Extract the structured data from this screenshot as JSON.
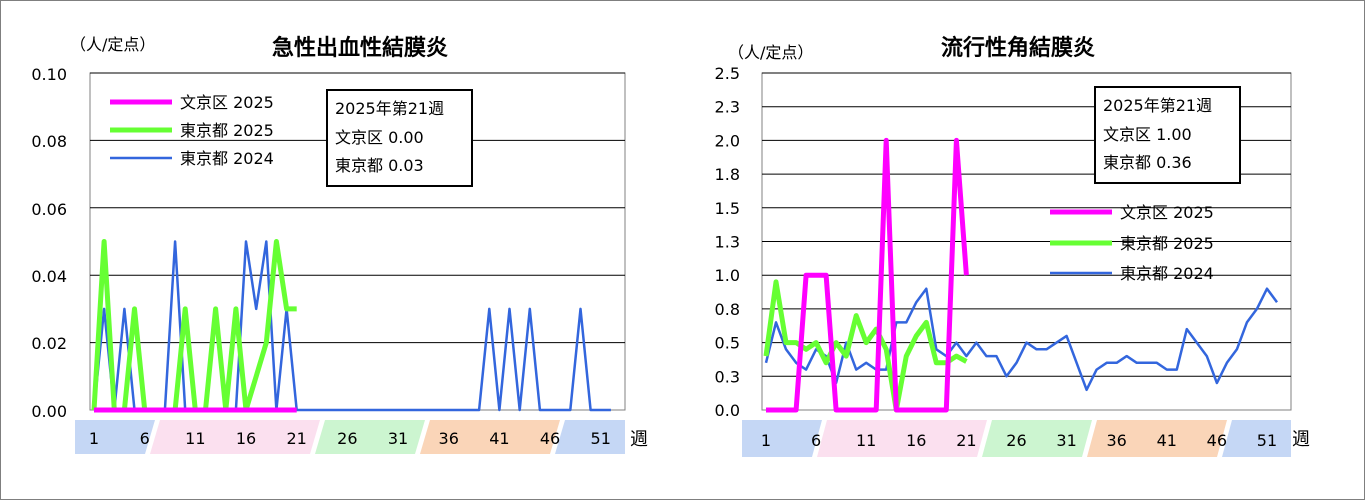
{
  "charts": [
    {
      "id": "left",
      "title": "急性出血性結膜炎",
      "unit_label": "（人/定点）",
      "x_axis_word": "週",
      "y_ticks": [
        "0.10",
        "0.08",
        "0.06",
        "0.04",
        "0.02",
        "0.00"
      ],
      "x_tick_labels": [
        "1",
        "6",
        "11",
        "16",
        "21",
        "26",
        "31",
        "36",
        "41",
        "46",
        "51"
      ],
      "legend": [
        {
          "label": "文京区 2025",
          "color": "#ff00ff"
        },
        {
          "label": "東京都 2025",
          "color": "#66ff33"
        },
        {
          "label": "東京都 2024",
          "color": "#3366dd"
        }
      ],
      "info_box": [
        "2025年第21週",
        "文京区  0.00",
        "東京都  0.03"
      ]
    },
    {
      "id": "right",
      "title": "流行性角結膜炎",
      "unit_label": "（人/定点）",
      "x_axis_word": "週",
      "y_ticks": [
        "2.5",
        "2.3",
        "2.0",
        "1.8",
        "1.5",
        "1.3",
        "1.0",
        "0.8",
        "0.5",
        "0.3",
        "0.0"
      ],
      "x_tick_labels": [
        "1",
        "6",
        "11",
        "16",
        "21",
        "26",
        "31",
        "36",
        "41",
        "46",
        "51"
      ],
      "legend": [
        {
          "label": "文京区 2025",
          "color": "#ff00ff"
        },
        {
          "label": "東京都 2025",
          "color": "#66ff33"
        },
        {
          "label": "東京都 2024",
          "color": "#3366dd"
        }
      ],
      "info_box": [
        "2025年第21週",
        "文京区  1.00",
        "東京都  0.36"
      ]
    }
  ],
  "chart_data": [
    {
      "type": "line",
      "title": "急性出血性結膜炎",
      "ylabel": "（人/定点）",
      "xlabel": "週",
      "ylim": [
        0,
        0.1
      ],
      "xlim": [
        1,
        53
      ],
      "grid": true,
      "legend_position": "top-left",
      "series": [
        {
          "name": "文京区 2025",
          "color": "#ff00ff",
          "values": [
            0,
            0,
            0,
            0,
            0,
            0,
            0,
            0,
            0,
            0,
            0,
            0,
            0,
            0,
            0,
            0,
            0,
            0,
            0,
            0,
            0
          ]
        },
        {
          "name": "東京都 2025",
          "color": "#66ff33",
          "values": [
            0,
            0.05,
            0,
            0,
            0.03,
            0,
            0,
            0,
            0,
            0.03,
            0,
            0,
            0.03,
            0,
            0.03,
            0,
            0.01,
            0.02,
            0.05,
            0.03,
            0.03
          ]
        },
        {
          "name": "東京都 2024",
          "color": "#3366dd",
          "values": [
            0,
            0.03,
            0,
            0.03,
            0,
            0,
            0,
            0,
            0.05,
            0,
            0,
            0,
            0,
            0,
            0,
            0.05,
            0.03,
            0.05,
            0,
            0.03,
            0,
            0,
            0,
            0,
            0,
            0,
            0,
            0,
            0,
            0,
            0,
            0,
            0,
            0,
            0,
            0,
            0,
            0,
            0,
            0.03,
            0,
            0.03,
            0,
            0.03,
            0,
            0,
            0,
            0,
            0.03,
            0,
            0,
            0
          ]
        }
      ]
    },
    {
      "type": "line",
      "title": "流行性角結膜炎",
      "ylabel": "（人/定点）",
      "xlabel": "週",
      "ylim": [
        0,
        2.5
      ],
      "xlim": [
        1,
        53
      ],
      "grid": true,
      "legend_position": "center-right",
      "series": [
        {
          "name": "文京区 2025",
          "color": "#ff00ff",
          "values": [
            0,
            0,
            0,
            0,
            1,
            1,
            1,
            0,
            0,
            0,
            0,
            0,
            2,
            0,
            0,
            0,
            0,
            0,
            0,
            2,
            1
          ]
        },
        {
          "name": "東京都 2025",
          "color": "#66ff33",
          "values": [
            0.4,
            0.95,
            0.5,
            0.5,
            0.45,
            0.5,
            0.35,
            0.5,
            0.4,
            0.7,
            0.5,
            0.6,
            0.45,
            0,
            0.4,
            0.55,
            0.65,
            0.35,
            0.35,
            0.4,
            0.36
          ]
        },
        {
          "name": "東京都 2024",
          "color": "#3366dd",
          "values": [
            0.35,
            0.65,
            0.45,
            0.35,
            0.3,
            0.45,
            0.4,
            0.2,
            0.5,
            0.3,
            0.35,
            0.3,
            0.3,
            0.65,
            0.65,
            0.8,
            0.9,
            0.45,
            0.4,
            0.5,
            0.4,
            0.5,
            0.4,
            0.4,
            0.25,
            0.35,
            0.5,
            0.45,
            0.45,
            0.5,
            0.55,
            0.35,
            0.15,
            0.3,
            0.35,
            0.35,
            0.4,
            0.35,
            0.35,
            0.35,
            0.3,
            0.3,
            0.6,
            0.5,
            0.4,
            0.2,
            0.35,
            0.45,
            0.65,
            0.75,
            0.9,
            0.8
          ]
        }
      ]
    }
  ]
}
